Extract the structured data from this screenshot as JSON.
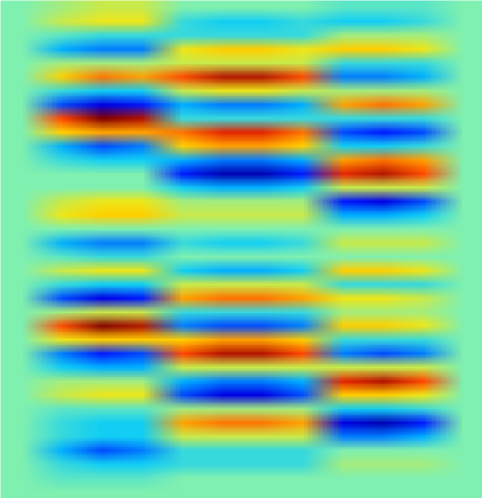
{
  "chart_data": {
    "type": "heatmap",
    "tick_labels": false,
    "clim": [
      -1,
      1
    ],
    "cells": [
      [
        0,
        0.1,
        0.2,
        0.2,
        0,
        0,
        0,
        0,
        -0.1,
        -0.1,
        -0.1,
        0
      ],
      [
        0,
        0.2,
        0.3,
        0.3,
        -0.2,
        -0.3,
        -0.3,
        -0.2,
        -0.3,
        -0.3,
        -0.2,
        0
      ],
      [
        0,
        -0.1,
        -0.2,
        -0.2,
        -0.2,
        -0.2,
        -0.2,
        -0.2,
        0.1,
        0.1,
        0.1,
        0
      ],
      [
        0,
        -0.4,
        -0.5,
        -0.5,
        0.3,
        0.4,
        0.4,
        0.3,
        0.4,
        0.4,
        0.3,
        0
      ],
      [
        0,
        0.1,
        0.1,
        0.1,
        0.2,
        0.2,
        0.2,
        0.2,
        -0.2,
        -0.2,
        -0.2,
        0
      ],
      [
        0,
        0.4,
        0.6,
        0.5,
        0.7,
        0.9,
        0.9,
        0.7,
        -0.5,
        -0.5,
        -0.4,
        0
      ],
      [
        0,
        -0.2,
        -0.3,
        -0.3,
        0.2,
        0.3,
        0.3,
        0.2,
        0.1,
        0.1,
        0.1,
        0
      ],
      [
        0,
        -0.6,
        -0.8,
        -0.7,
        -0.4,
        -0.5,
        -0.5,
        -0.4,
        0.5,
        0.6,
        0.5,
        0
      ],
      [
        0,
        0.7,
        1.0,
        0.9,
        -0.2,
        -0.2,
        -0.2,
        -0.2,
        -0.2,
        -0.2,
        -0.2,
        0
      ],
      [
        0,
        0.4,
        0.5,
        0.5,
        0.6,
        0.8,
        0.8,
        0.6,
        -0.6,
        -0.7,
        -0.6,
        0
      ],
      [
        0,
        -0.4,
        -0.6,
        -0.5,
        0.4,
        0.5,
        0.5,
        0.4,
        -0.3,
        -0.3,
        -0.2,
        0
      ],
      [
        0,
        -0.2,
        -0.3,
        -0.3,
        -0.4,
        -0.5,
        -0.5,
        -0.4,
        0.5,
        0.6,
        0.5,
        0
      ],
      [
        0,
        0,
        0,
        0,
        -0.7,
        -0.9,
        -0.9,
        -0.7,
        0.8,
        0.9,
        0.7,
        0
      ],
      [
        0,
        0,
        0,
        0,
        -0.3,
        -0.4,
        -0.4,
        -0.3,
        0.2,
        0.2,
        0.2,
        0
      ],
      [
        0,
        0.2,
        0.3,
        0.3,
        0.1,
        0.1,
        0.1,
        0.1,
        -0.7,
        -0.8,
        -0.6,
        0
      ],
      [
        0,
        0.3,
        0.4,
        0.4,
        0.2,
        0.2,
        0.2,
        0.2,
        -0.4,
        -0.4,
        -0.3,
        0
      ],
      [
        0,
        0,
        0,
        0,
        0,
        0,
        0,
        0,
        0,
        0,
        0,
        0
      ],
      [
        0,
        -0.4,
        -0.5,
        -0.5,
        -0.2,
        -0.3,
        -0.3,
        -0.2,
        0.2,
        0.2,
        0.2,
        0
      ],
      [
        0,
        -0.1,
        -0.2,
        -0.2,
        0,
        0,
        0,
        0,
        0,
        0,
        0,
        0
      ],
      [
        0,
        0.2,
        0.3,
        0.3,
        -0.3,
        -0.4,
        -0.4,
        -0.3,
        0.4,
        0.4,
        0.3,
        0
      ],
      [
        0,
        -0.2,
        -0.3,
        -0.3,
        0.2,
        0.2,
        0.2,
        0.2,
        -0.2,
        -0.2,
        -0.2,
        0
      ],
      [
        0,
        -0.6,
        -0.8,
        -0.7,
        0.5,
        0.6,
        0.6,
        0.5,
        0.3,
        0.3,
        0.2,
        0
      ],
      [
        0,
        0.1,
        0.2,
        0.2,
        -0.2,
        -0.2,
        -0.2,
        -0.2,
        0.1,
        0.1,
        0.1,
        0
      ],
      [
        0,
        0.7,
        1.0,
        0.9,
        -0.5,
        -0.6,
        -0.6,
        -0.5,
        0.4,
        0.4,
        0.3,
        0
      ],
      [
        0,
        0.3,
        0.4,
        0.4,
        0.4,
        0.5,
        0.5,
        0.4,
        -0.2,
        -0.2,
        -0.2,
        0
      ],
      [
        0,
        -0.5,
        -0.7,
        -0.6,
        0.7,
        0.9,
        0.9,
        0.7,
        -0.5,
        -0.6,
        -0.5,
        0
      ],
      [
        0,
        -0.3,
        -0.4,
        -0.4,
        0.2,
        0.2,
        0.2,
        0.2,
        0.2,
        0.2,
        0.2,
        0
      ],
      [
        0,
        0.1,
        0.1,
        0.1,
        -0.4,
        -0.5,
        -0.5,
        -0.4,
        0.8,
        0.9,
        0.7,
        0
      ],
      [
        0,
        0.2,
        0.3,
        0.3,
        -0.6,
        -0.8,
        -0.8,
        -0.6,
        0.4,
        0.4,
        0.3,
        0
      ],
      [
        0,
        -0.1,
        -0.1,
        -0.1,
        0.1,
        0.1,
        0.1,
        0.1,
        -0.3,
        -0.3,
        -0.2,
        0
      ],
      [
        0,
        -0.2,
        -0.3,
        -0.3,
        0.5,
        0.6,
        0.6,
        0.5,
        -0.8,
        -0.9,
        -0.7,
        0
      ],
      [
        0,
        -0.2,
        -0.3,
        -0.3,
        0.2,
        0.2,
        0.2,
        0.2,
        -0.5,
        -0.5,
        -0.4,
        0
      ],
      [
        0,
        -0.4,
        -0.6,
        -0.5,
        -0.2,
        -0.2,
        -0.2,
        -0.2,
        0,
        0,
        0,
        0
      ],
      [
        0,
        -0.2,
        -0.3,
        -0.3,
        -0.2,
        -0.2,
        -0.2,
        -0.2,
        0.1,
        0.1,
        0.1,
        0
      ],
      [
        0,
        -0.1,
        -0.1,
        -0.1,
        0,
        0,
        0,
        0,
        0,
        0,
        0,
        0
      ],
      [
        0,
        0,
        0,
        0,
        0,
        0,
        0,
        0,
        0,
        0,
        0,
        0
      ]
    ]
  }
}
